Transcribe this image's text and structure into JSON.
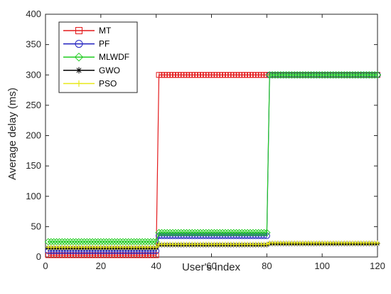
{
  "chart_data": {
    "type": "line",
    "title": "",
    "xlabel": "User's index",
    "ylabel": "Average delay (ms)",
    "xlim": [
      0,
      120
    ],
    "ylim": [
      0,
      400
    ],
    "xticks": [
      0,
      20,
      40,
      60,
      80,
      100,
      120
    ],
    "yticks": [
      0,
      50,
      100,
      150,
      200,
      250,
      300,
      350,
      400
    ],
    "grid": false,
    "legend_position": "top-left",
    "series": [
      {
        "name": "MT",
        "color": "#e31a1c",
        "marker": "square",
        "segments": [
          {
            "x_from": 1,
            "x_to": 40,
            "y": 3
          },
          {
            "x_from": 41,
            "x_to": 120,
            "y": 300
          }
        ]
      },
      {
        "name": "PF",
        "color": "#1f1fbf",
        "marker": "circle",
        "segments": [
          {
            "x_from": 1,
            "x_to": 40,
            "y": 10
          },
          {
            "x_from": 41,
            "x_to": 80,
            "y": 35
          },
          {
            "x_from": 81,
            "x_to": 120,
            "y": 300
          }
        ]
      },
      {
        "name": "MLWDF",
        "color": "#22cc22",
        "marker": "diamond",
        "segments": [
          {
            "x_from": 1,
            "x_to": 40,
            "y": 25
          },
          {
            "x_from": 41,
            "x_to": 80,
            "y": 40
          },
          {
            "x_from": 81,
            "x_to": 120,
            "y": 300
          }
        ]
      },
      {
        "name": "GWO",
        "color": "#000000",
        "marker": "asterisk",
        "segments": [
          {
            "x_from": 1,
            "x_to": 40,
            "y": 15
          },
          {
            "x_from": 41,
            "x_to": 80,
            "y": 20
          },
          {
            "x_from": 81,
            "x_to": 120,
            "y": 22
          }
        ]
      },
      {
        "name": "PSO",
        "color": "#e8e81a",
        "marker": "plus",
        "segments": [
          {
            "x_from": 1,
            "x_to": 40,
            "y": 16
          },
          {
            "x_from": 41,
            "x_to": 80,
            "y": 21
          },
          {
            "x_from": 81,
            "x_to": 120,
            "y": 23
          }
        ]
      }
    ]
  }
}
